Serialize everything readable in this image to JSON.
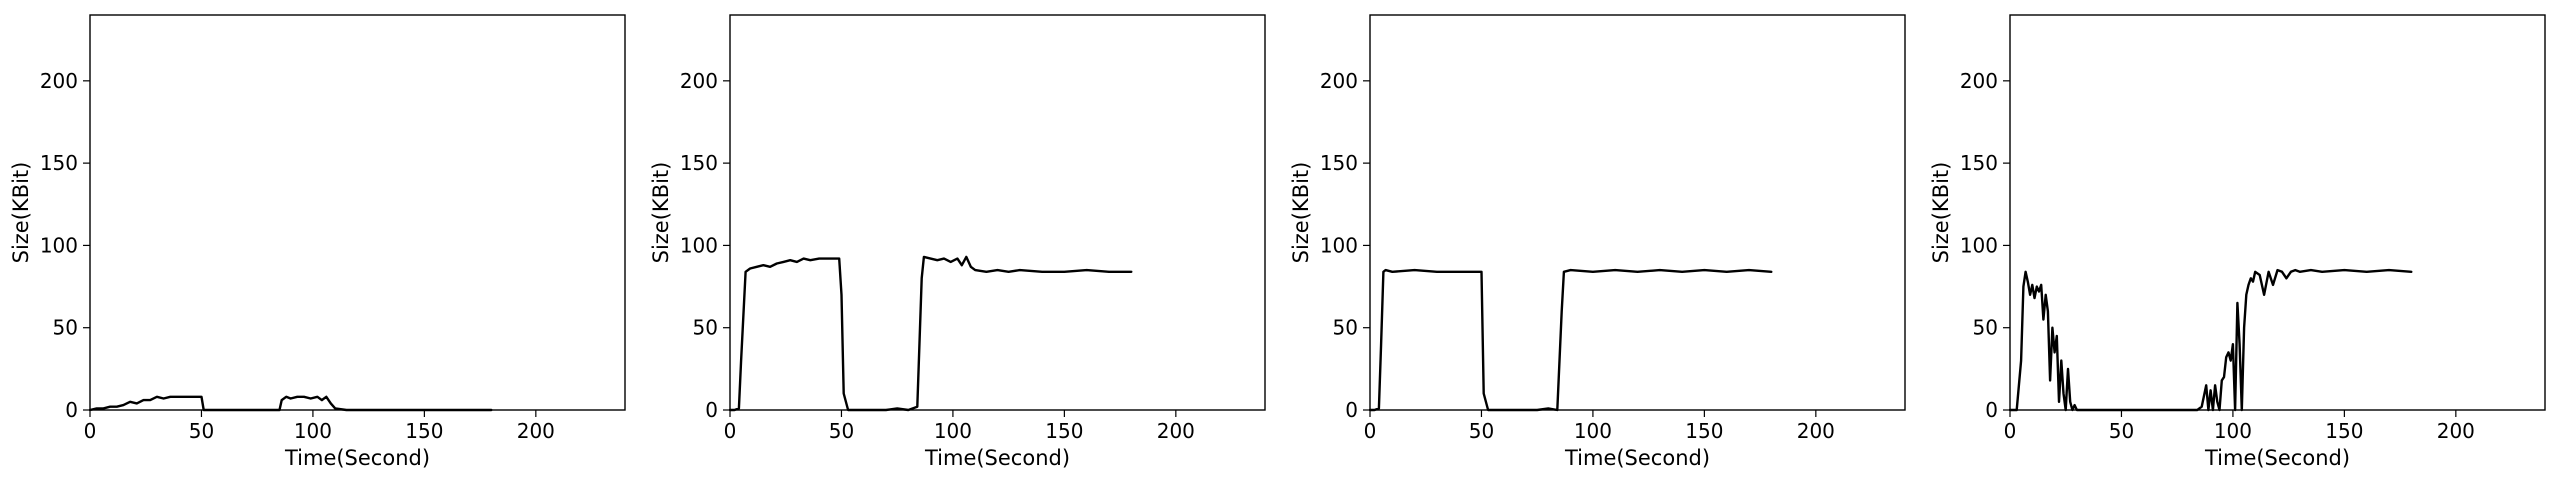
{
  "chart_data": [
    {
      "type": "line",
      "xlabel": "Time(Second)",
      "ylabel": "Size(KBit)",
      "xlim": [
        0,
        240
      ],
      "ylim": [
        0,
        240
      ],
      "xticks": [
        0,
        50,
        100,
        150,
        200
      ],
      "yticks": [
        0,
        50,
        100,
        150,
        200
      ],
      "grid": false,
      "series": [
        {
          "color": "#000000",
          "x": [
            0,
            3,
            6,
            9,
            12,
            15,
            18,
            21,
            24,
            27,
            30,
            33,
            36,
            39,
            42,
            45,
            48,
            50,
            51,
            55,
            60,
            65,
            70,
            75,
            80,
            85,
            86,
            88,
            90,
            93,
            96,
            99,
            102,
            104,
            106,
            108,
            110,
            115,
            120,
            130,
            140,
            150,
            160,
            170,
            180
          ],
          "y": [
            0,
            1,
            1,
            2,
            2,
            3,
            5,
            4,
            6,
            6,
            8,
            7,
            8,
            8,
            8,
            8,
            8,
            8,
            0,
            0,
            0,
            0,
            0,
            0,
            0,
            0,
            6,
            8,
            7,
            8,
            8,
            7,
            8,
            6,
            8,
            4,
            1,
            0,
            0,
            0,
            0,
            0,
            0,
            0,
            0
          ]
        }
      ]
    },
    {
      "type": "line",
      "xlabel": "Time(Second)",
      "ylabel": "Size(KBit)",
      "xlim": [
        0,
        240
      ],
      "ylim": [
        0,
        240
      ],
      "xticks": [
        0,
        50,
        100,
        150,
        200
      ],
      "yticks": [
        0,
        50,
        100,
        150,
        200
      ],
      "grid": false,
      "series": [
        {
          "color": "#000000",
          "x": [
            0,
            2,
            4,
            5,
            7,
            9,
            12,
            15,
            18,
            21,
            24,
            27,
            30,
            33,
            36,
            40,
            45,
            49,
            50,
            51,
            53,
            55,
            60,
            65,
            70,
            75,
            80,
            84,
            86,
            87,
            90,
            93,
            96,
            99,
            102,
            104,
            106,
            108,
            110,
            115,
            120,
            125,
            130,
            140,
            150,
            160,
            170,
            180
          ],
          "y": [
            0,
            0,
            1,
            30,
            84,
            86,
            87,
            88,
            87,
            89,
            90,
            91,
            90,
            92,
            91,
            92,
            92,
            92,
            70,
            10,
            0,
            0,
            0,
            0,
            0,
            1,
            0,
            2,
            80,
            93,
            92,
            91,
            92,
            90,
            92,
            88,
            93,
            87,
            85,
            84,
            85,
            84,
            85,
            84,
            84,
            85,
            84,
            84
          ]
        }
      ]
    },
    {
      "type": "line",
      "xlabel": "Time(Second)",
      "ylabel": "Size(KBit)",
      "xlim": [
        0,
        240
      ],
      "ylim": [
        0,
        240
      ],
      "xticks": [
        0,
        50,
        100,
        150,
        200
      ],
      "yticks": [
        0,
        50,
        100,
        150,
        200
      ],
      "grid": false,
      "series": [
        {
          "color": "#000000",
          "x": [
            0,
            2,
            4,
            5,
            6,
            7,
            10,
            20,
            30,
            40,
            50,
            51,
            53,
            55,
            60,
            65,
            70,
            75,
            80,
            84,
            86,
            87,
            90,
            100,
            110,
            120,
            130,
            140,
            150,
            160,
            170,
            180
          ],
          "y": [
            0,
            0,
            1,
            40,
            84,
            85,
            84,
            85,
            84,
            84,
            84,
            10,
            0,
            0,
            0,
            0,
            0,
            0,
            1,
            0,
            60,
            84,
            85,
            84,
            85,
            84,
            85,
            84,
            85,
            84,
            85,
            84
          ]
        }
      ]
    },
    {
      "type": "line",
      "xlabel": "Time(Second)",
      "ylabel": "Size(KBit)",
      "xlim": [
        0,
        240
      ],
      "ylim": [
        0,
        240
      ],
      "xticks": [
        0,
        50,
        100,
        150,
        200
      ],
      "yticks": [
        0,
        50,
        100,
        150,
        200
      ],
      "grid": false,
      "series": [
        {
          "color": "#000000",
          "x": [
            0,
            3,
            5,
            6,
            7,
            8,
            9,
            10,
            11,
            12,
            13,
            14,
            15,
            16,
            17,
            18,
            19,
            20,
            21,
            22,
            23,
            24,
            25,
            26,
            27,
            28,
            29,
            30,
            32,
            35,
            40,
            50,
            60,
            70,
            80,
            84,
            86,
            88,
            89,
            90,
            91,
            92,
            93,
            94,
            95,
            96,
            97,
            98,
            99,
            100,
            101,
            102,
            103,
            104,
            105,
            106,
            107,
            108,
            109,
            110,
            112,
            114,
            116,
            118,
            120,
            122,
            124,
            126,
            128,
            130,
            135,
            140,
            150,
            160,
            170,
            180
          ],
          "y": [
            0,
            0,
            30,
            75,
            84,
            78,
            70,
            76,
            68,
            75,
            72,
            76,
            55,
            70,
            60,
            18,
            50,
            35,
            45,
            5,
            30,
            10,
            0,
            25,
            5,
            0,
            3,
            0,
            0,
            0,
            0,
            0,
            0,
            0,
            0,
            0,
            2,
            15,
            0,
            12,
            0,
            15,
            5,
            0,
            18,
            20,
            32,
            35,
            30,
            40,
            0,
            65,
            40,
            0,
            50,
            70,
            76,
            80,
            78,
            84,
            82,
            70,
            84,
            76,
            85,
            84,
            80,
            84,
            85,
            84,
            85,
            84,
            85,
            84,
            85,
            84
          ]
        }
      ]
    }
  ]
}
